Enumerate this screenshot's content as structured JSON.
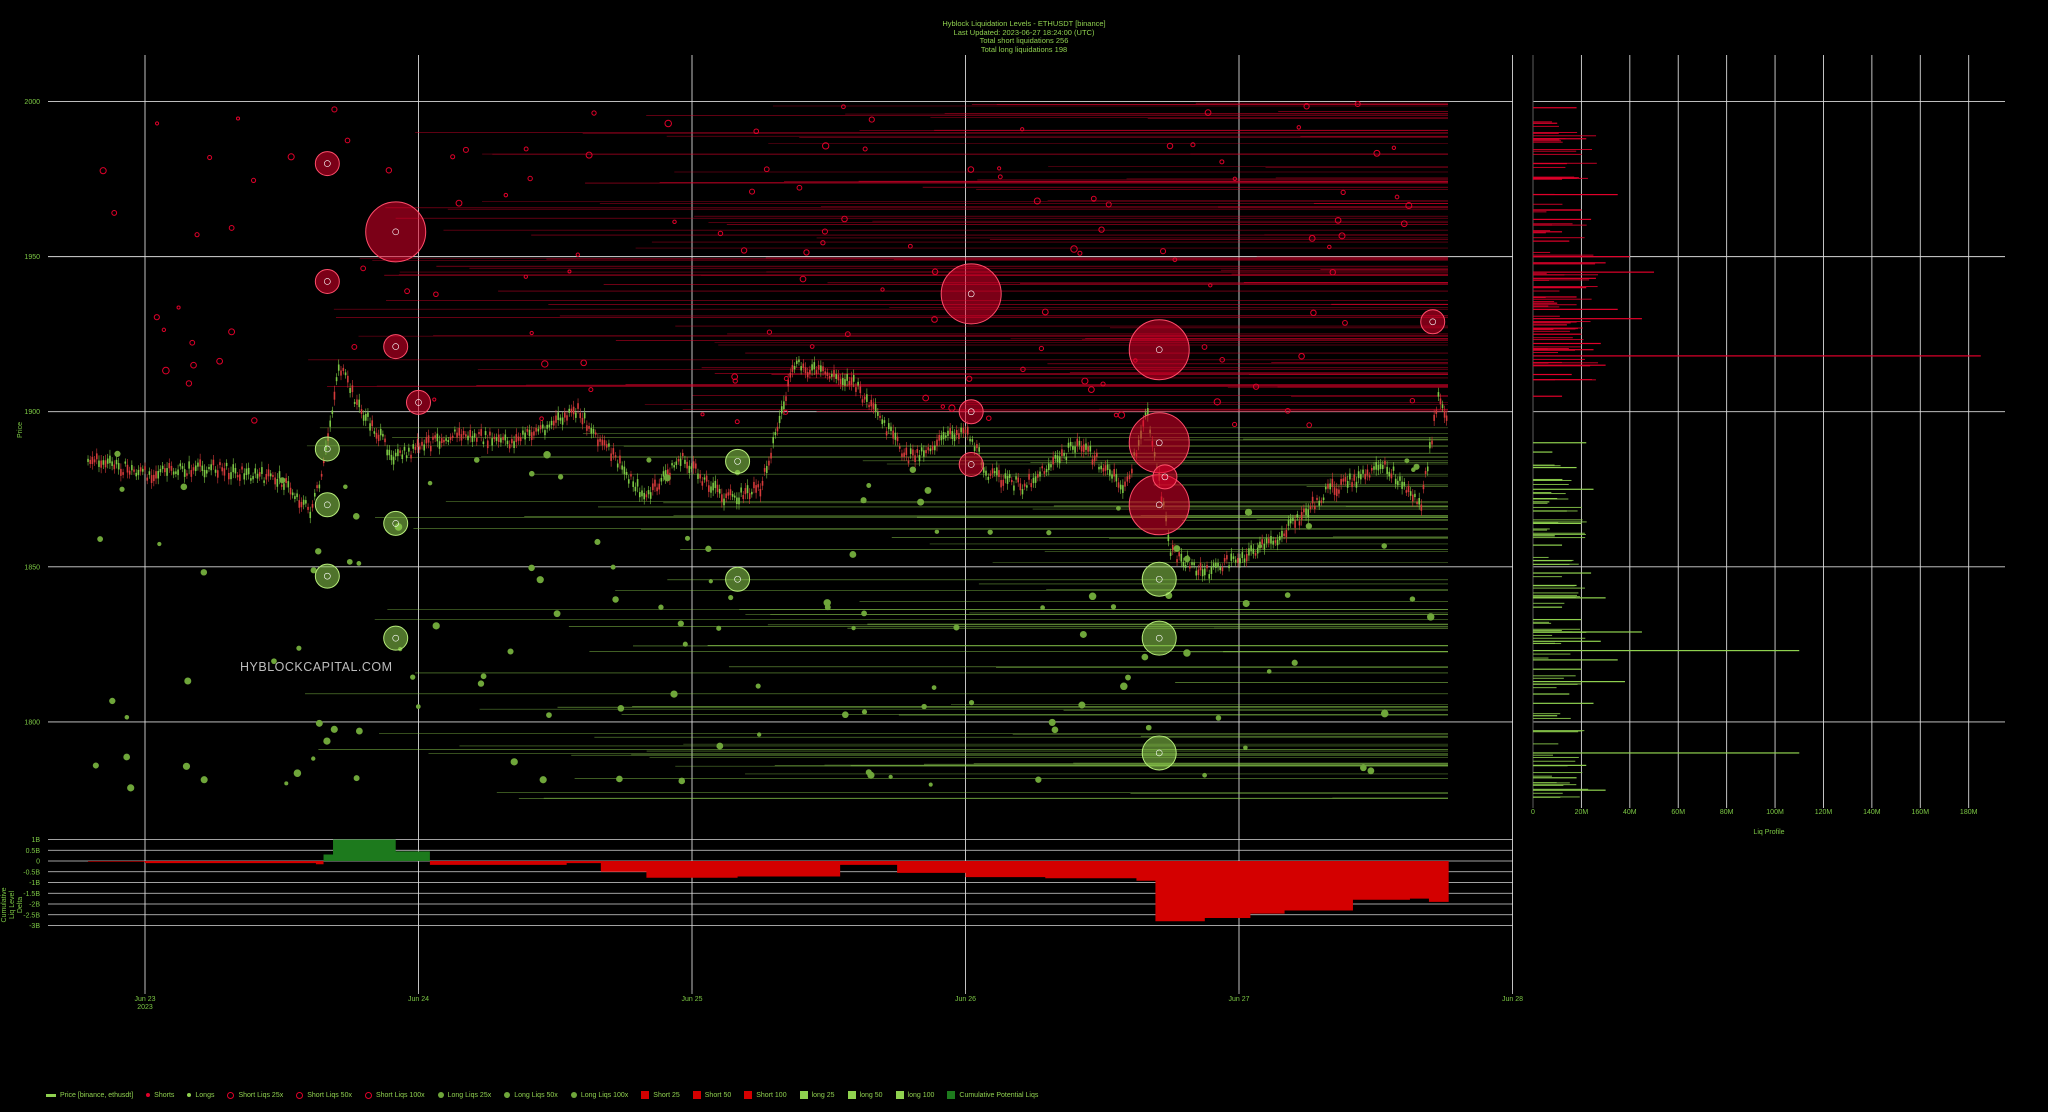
{
  "header": {
    "title": "Hyblock Liquidation Levels - ETHUSDT [binance]",
    "updated": "Last Updated: 2023-06-27 18:24:00 (UTC)",
    "short_total": "Total short liquidations 256",
    "long_total": "Total long liquidations 198"
  },
  "watermark": "HYBLOCKCAPITAL.COM",
  "colors": {
    "background": "#000000",
    "grid": "#d8d8d8",
    "label": "#7cc844",
    "short": "#e0002a",
    "long": "#8fd14f",
    "candle_up": "#7cc844",
    "candle_down": "#d43a3a",
    "delta_positive": "#1d7a1d",
    "delta_negative": "#d40000"
  },
  "chart_data": [
    {
      "type": "scatter",
      "name": "price-liquidation-chart",
      "xlabel": "",
      "ylabel": "Price",
      "x_tick_labels": [
        "Jun 23\n2023",
        "Jun 24",
        "Jun 25",
        "Jun 26",
        "Jun 27",
        "Jun 28"
      ],
      "y_tick_labels": [
        "1800",
        "1850",
        "1900",
        "1950",
        "2000"
      ],
      "ylim": [
        1770,
        2015
      ],
      "grid": true,
      "price_path": {
        "x": [
          "2023-06-22 19:00",
          "2023-06-23 00:00",
          "2023-06-23 06:00",
          "2023-06-23 12:00",
          "2023-06-23 14:30",
          "2023-06-23 15:30",
          "2023-06-23 17:00",
          "2023-06-23 19:00",
          "2023-06-23 22:00",
          "2023-06-24 03:00",
          "2023-06-24 08:00",
          "2023-06-24 14:00",
          "2023-06-24 20:00",
          "2023-06-24 23:00",
          "2023-06-25 03:00",
          "2023-06-25 06:00",
          "2023-06-25 09:00",
          "2023-06-25 14:00",
          "2023-06-25 19:00",
          "2023-06-26 00:00",
          "2023-06-26 02:00",
          "2023-06-26 05:00",
          "2023-06-26 10:00",
          "2023-06-26 14:00",
          "2023-06-26 16:00",
          "2023-06-26 18:00",
          "2023-06-26 21:00",
          "2023-06-27 03:00",
          "2023-06-27 08:00",
          "2023-06-27 13:00",
          "2023-06-27 16:00",
          "2023-06-27 17:30",
          "2023-06-27 18:24"
        ],
        "y": [
          1885,
          1880,
          1882,
          1878,
          1868,
          1878,
          1915,
          1900,
          1885,
          1893,
          1890,
          1900,
          1872,
          1885,
          1872,
          1875,
          1915,
          1910,
          1885,
          1895,
          1880,
          1876,
          1890,
          1875,
          1900,
          1855,
          1848,
          1858,
          1875,
          1882,
          1870,
          1905,
          1895
        ]
      },
      "series": [
        {
          "name": "Short Liqs 100x",
          "size_class": "large",
          "x": [
            "2023-06-23 22:00",
            "2023-06-26 00:30",
            "2023-06-26 17:00",
            "2023-06-26 17:00",
            "2023-06-26 17:00"
          ],
          "y": [
            1958,
            1938,
            1920,
            1890,
            1870
          ]
        },
        {
          "name": "Long Liqs 100x",
          "size_class": "large",
          "x": [
            "2023-06-26 17:00",
            "2023-06-26 17:00",
            "2023-06-26 17:00"
          ],
          "y": [
            1846,
            1827,
            1790
          ]
        },
        {
          "name": "Short Liqs 50x",
          "size_class": "medium",
          "x": [
            "2023-06-23 16:00",
            "2023-06-23 16:00",
            "2023-06-23 22:00",
            "2023-06-24 00:00",
            "2023-06-26 00:30",
            "2023-06-26 00:30",
            "2023-06-26 17:30",
            "2023-06-27 17:00"
          ],
          "y": [
            1980,
            1942,
            1921,
            1903,
            1900,
            1883,
            1879,
            1929
          ]
        },
        {
          "name": "Long Liqs 50x",
          "size_class": "medium",
          "x": [
            "2023-06-23 16:00",
            "2023-06-23 16:00",
            "2023-06-23 16:00",
            "2023-06-23 22:00",
            "2023-06-23 22:00",
            "2023-06-25 04:00",
            "2023-06-25 04:00"
          ],
          "y": [
            1888,
            1870,
            1847,
            1864,
            1827,
            1884,
            1846
          ]
        }
      ]
    },
    {
      "type": "area",
      "name": "cumulative-liq-delta",
      "ylabel": "Cumulative Liq Level Delta",
      "y_tick_labels": [
        "1B",
        "0.5B",
        "0",
        "-0.5B",
        "-1B",
        "-1.5B",
        "-2B",
        "-2.5B",
        "-3B"
      ],
      "ylim": [
        -3,
        1
      ],
      "x": [
        "2023-06-22 19:00",
        "2023-06-23 00:00",
        "2023-06-23 15:00",
        "2023-06-23 15:40",
        "2023-06-23 16:30",
        "2023-06-23 22:00",
        "2023-06-24 01:00",
        "2023-06-24 13:00",
        "2023-06-24 16:00",
        "2023-06-24 20:00",
        "2023-06-25 04:00",
        "2023-06-25 13:00",
        "2023-06-25 18:00",
        "2023-06-26 00:00",
        "2023-06-26 07:00",
        "2023-06-26 15:00",
        "2023-06-26 16:40",
        "2023-06-26 21:00",
        "2023-06-27 01:00",
        "2023-06-27 04:00",
        "2023-06-27 10:00",
        "2023-06-27 15:00",
        "2023-06-27 16:40",
        "2023-06-27 18:24"
      ],
      "values": [
        -0.03,
        -0.1,
        -0.15,
        0.3,
        1.0,
        0.45,
        -0.18,
        -0.1,
        -0.5,
        -0.78,
        -0.72,
        -0.18,
        -0.55,
        -0.75,
        -0.8,
        -0.92,
        -2.8,
        -2.65,
        -2.45,
        -2.3,
        -1.8,
        -1.75,
        -1.9,
        -1.1
      ]
    },
    {
      "type": "bar",
      "name": "liq-profile",
      "orientation": "horizontal",
      "xlabel": "Liq Profile",
      "x_tick_labels": [
        "0",
        "20M",
        "40M",
        "60M",
        "80M",
        "100M",
        "120M",
        "140M",
        "160M",
        "180M"
      ],
      "xlim": [
        0,
        195
      ],
      "y_tick_labels": [
        "1800",
        "1850",
        "1900",
        "1950",
        "2000"
      ],
      "ylim": [
        1770,
        2015
      ],
      "series": [
        {
          "name": "Short",
          "y": [
            1998,
            1993,
            1988,
            1980,
            1975,
            1970,
            1965,
            1962,
            1958,
            1955,
            1950,
            1948,
            1945,
            1943,
            1940,
            1937,
            1935,
            1933,
            1930,
            1928,
            1925,
            1922,
            1920,
            1918,
            1915,
            1912,
            1905
          ],
          "values": [
            18,
            10,
            22,
            14,
            12,
            35,
            20,
            24,
            12,
            15,
            40,
            30,
            50,
            26,
            22,
            18,
            10,
            35,
            45,
            14,
            20,
            28,
            25,
            185,
            30,
            16,
            12
          ]
        },
        {
          "name": "Long",
          "y": [
            1890,
            1887,
            1882,
            1878,
            1875,
            1872,
            1868,
            1864,
            1860,
            1857,
            1852,
            1848,
            1844,
            1840,
            1837,
            1833,
            1829,
            1826,
            1823,
            1820,
            1817,
            1813,
            1809,
            1806,
            1802,
            1790,
            1786,
            1782,
            1778
          ],
          "values": [
            22,
            8,
            18,
            12,
            25,
            10,
            14,
            20,
            9,
            12,
            16,
            24,
            18,
            30,
            12,
            20,
            45,
            28,
            110,
            35,
            20,
            38,
            15,
            25,
            10,
            110,
            22,
            18,
            30
          ]
        }
      ]
    }
  ],
  "legend": [
    {
      "label": "Price [binance, ethusdt]",
      "color": "#8fd14f",
      "kind": "line"
    },
    {
      "label": "Shorts",
      "color": "#e0002a",
      "kind": "dot"
    },
    {
      "label": "Longs",
      "color": "#8fd14f",
      "kind": "dot"
    },
    {
      "label": "Short Liqs 25x",
      "color": "#e0002a",
      "kind": "ring"
    },
    {
      "label": "Short Liqs 50x",
      "color": "#e0002a",
      "kind": "ring"
    },
    {
      "label": "Short Liqs 100x",
      "color": "#e0002a",
      "kind": "ring"
    },
    {
      "label": "Long Liqs 25x",
      "color": "#6fa63a",
      "kind": "fdot"
    },
    {
      "label": "Long Liqs 50x",
      "color": "#6fa63a",
      "kind": "fdot"
    },
    {
      "label": "Long Liqs 100x",
      "color": "#6fa63a",
      "kind": "fdot"
    },
    {
      "label": "Short 25",
      "color": "#d40000",
      "kind": "square"
    },
    {
      "label": "Short 50",
      "color": "#d40000",
      "kind": "square"
    },
    {
      "label": "Short 100",
      "color": "#d40000",
      "kind": "square"
    },
    {
      "label": "long 25",
      "color": "#8fd14f",
      "kind": "square"
    },
    {
      "label": "long 50",
      "color": "#8fd14f",
      "kind": "square"
    },
    {
      "label": "long 100",
      "color": "#8fd14f",
      "kind": "square"
    },
    {
      "label": "Cumulative Potential Liqs",
      "color": "#1d7a1d",
      "kind": "square"
    }
  ]
}
